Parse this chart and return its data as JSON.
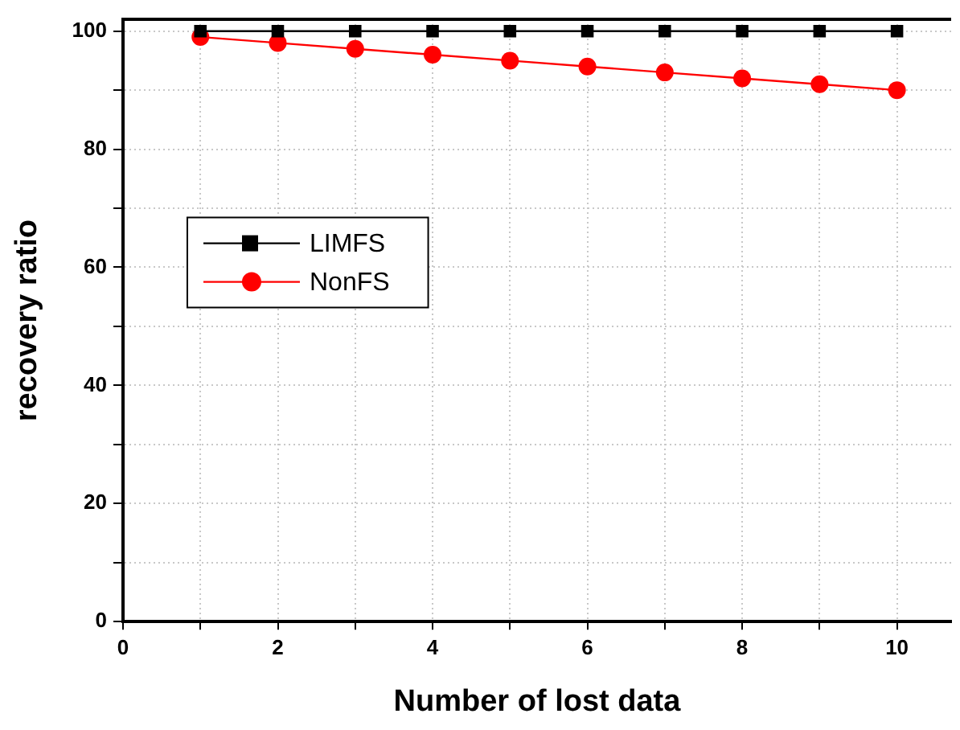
{
  "chart_data": {
    "type": "line",
    "xlabel": "Number of lost data",
    "ylabel": "recovery ratio",
    "x": [
      1,
      2,
      3,
      4,
      5,
      6,
      7,
      8,
      9,
      10
    ],
    "series": [
      {
        "name": "LIMFS",
        "color": "#000000",
        "marker": "square",
        "values": [
          100,
          100,
          100,
          100,
          100,
          100,
          100,
          100,
          100,
          100
        ]
      },
      {
        "name": "NonFS",
        "color": "#ff0000",
        "marker": "circle",
        "values": [
          99,
          98,
          97,
          96,
          95,
          94,
          93,
          92,
          91,
          90
        ]
      }
    ],
    "xlim": [
      0,
      10.7
    ],
    "xticks": [
      0,
      {
        "value": 1,
        "label": null
      },
      2,
      {
        "value": 3,
        "label": null
      },
      4,
      {
        "value": 5,
        "label": null
      },
      6,
      {
        "value": 7,
        "label": null
      },
      8,
      {
        "value": 9,
        "label": null
      },
      10
    ],
    "ylim": [
      0,
      102
    ],
    "yticks": [
      0,
      {
        "value": 10,
        "label": null
      },
      20,
      {
        "value": 30,
        "label": null
      },
      40,
      {
        "value": 50,
        "label": null
      },
      60,
      {
        "value": 70,
        "label": null
      },
      80,
      {
        "value": 90,
        "label": null
      },
      100
    ],
    "grid": true,
    "legend": "left",
    "line_style": "solid"
  }
}
